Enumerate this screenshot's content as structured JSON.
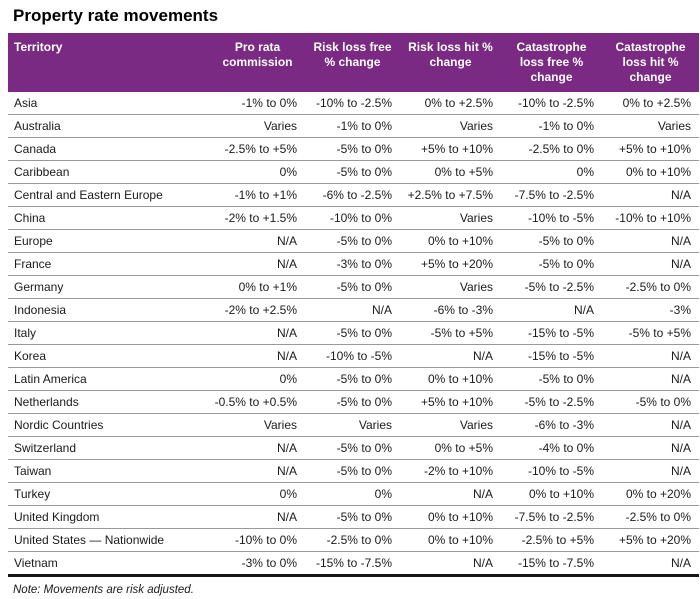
{
  "title": "Property rate movements",
  "note": "Note: Movements are risk adjusted.",
  "colors": {
    "header_bg": "#7a2a83",
    "header_text": "#ffffff",
    "row_line": "#999999",
    "bottom_line": "#161616"
  },
  "table": {
    "columns": [
      "Territory",
      "Pro rata commission",
      "Risk loss free % change",
      "Risk loss hit % change",
      "Catastrophe loss free % change",
      "Catastrophe loss hit % change"
    ],
    "rows": [
      [
        "Asia",
        "-1% to 0%",
        "-10% to -2.5%",
        "0% to +2.5%",
        "-10% to -2.5%",
        "0% to +2.5%"
      ],
      [
        "Australia",
        "Varies",
        "-1% to 0%",
        "Varies",
        "-1% to 0%",
        "Varies"
      ],
      [
        "Canada",
        "-2.5% to +5%",
        "-5% to 0%",
        "+5% to +10%",
        "-2.5% to 0%",
        "+5% to +10%"
      ],
      [
        "Caribbean",
        "0%",
        "-5% to 0%",
        "0% to +5%",
        "0%",
        "0% to +10%"
      ],
      [
        "Central and Eastern Europe",
        "-1% to +1%",
        "-6% to -2.5%",
        "+2.5% to +7.5%",
        "-7.5% to -2.5%",
        "N/A"
      ],
      [
        "China",
        "-2% to +1.5%",
        "-10% to 0%",
        "Varies",
        "-10% to -5%",
        "-10% to +10%"
      ],
      [
        "Europe",
        "N/A",
        "-5% to 0%",
        "0% to +10%",
        "-5% to 0%",
        "N/A"
      ],
      [
        "France",
        "N/A",
        "-3% to 0%",
        "+5% to +20%",
        "-5% to 0%",
        "N/A"
      ],
      [
        "Germany",
        "0% to +1%",
        "-5% to 0%",
        "Varies",
        "-5% to -2.5%",
        "-2.5% to 0%"
      ],
      [
        "Indonesia",
        "-2% to +2.5%",
        "N/A",
        "-6% to -3%",
        "N/A",
        "-3%"
      ],
      [
        "Italy",
        "N/A",
        "-5% to 0%",
        "-5% to +5%",
        "-15% to -5%",
        "-5% to +5%"
      ],
      [
        "Korea",
        "N/A",
        "-10% to -5%",
        "N/A",
        "-15% to -5%",
        "N/A"
      ],
      [
        "Latin America",
        "0%",
        "-5% to 0%",
        "0% to +10%",
        "-5% to 0%",
        "N/A"
      ],
      [
        "Netherlands",
        "-0.5% to +0.5%",
        "-5% to 0%",
        "+5% to +10%",
        "-5% to -2.5%",
        "-5% to 0%"
      ],
      [
        "Nordic Countries",
        "Varies",
        "Varies",
        "Varies",
        "-6% to -3%",
        "N/A"
      ],
      [
        "Switzerland",
        "N/A",
        "-5% to 0%",
        "0% to +5%",
        "-4% to 0%",
        "N/A"
      ],
      [
        "Taiwan",
        "N/A",
        "-5% to 0%",
        "-2% to +10%",
        "-10% to -5%",
        "N/A"
      ],
      [
        "Turkey",
        "0%",
        "0%",
        "N/A",
        "0% to +10%",
        "0% to +20%"
      ],
      [
        "United Kingdom",
        "N/A",
        "-5% to 0%",
        "0% to +10%",
        "-7.5% to -2.5%",
        "-2.5% to 0%"
      ],
      [
        "United States — Nationwide",
        "-10% to 0%",
        "-2.5% to 0%",
        "0% to +10%",
        "-2.5% to +5%",
        "+5% to +20%"
      ],
      [
        "Vietnam",
        "-3% to 0%",
        "-15% to -7.5%",
        "N/A",
        "-15% to -7.5%",
        "N/A"
      ]
    ]
  }
}
